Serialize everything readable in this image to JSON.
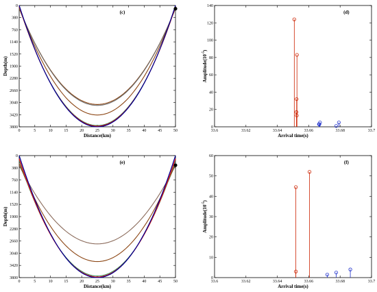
{
  "chart_data": [
    {
      "panel": "c",
      "type": "line",
      "label": "(c)",
      "xlabel": "Distance(km)",
      "ylabel": "Depth(m)",
      "xlim": [
        0,
        50
      ],
      "ylim": [
        0,
        3800
      ],
      "y_inverted": true,
      "x_ticks": [
        "0",
        "5",
        "10",
        "15",
        "20",
        "25",
        "30",
        "35",
        "40",
        "45",
        "50"
      ],
      "y_ticks": [
        "0",
        "380",
        "760",
        "1140",
        "1520",
        "1900",
        "2280",
        "2660",
        "3040",
        "3420",
        "3800"
      ],
      "source": {
        "x": 50,
        "depth": 100
      },
      "rays": [
        {
          "color": "#8b4513",
          "depth": [
            100,
            3100,
            100
          ]
        },
        {
          "color": "#6b6b6b",
          "depth": [
            90,
            3130,
            90
          ]
        },
        {
          "color": "#8b4513",
          "depth": [
            60,
            3430,
            60
          ]
        },
        {
          "color": "#2e8b57",
          "depth": [
            40,
            3760,
            40
          ]
        },
        {
          "color": "#ff0000",
          "depth": [
            30,
            3780,
            30
          ]
        },
        {
          "color": "#0000cd",
          "depth": [
            0,
            3800,
            0
          ]
        },
        {
          "color": "#00008b",
          "depth": [
            0,
            3800,
            0
          ]
        }
      ]
    },
    {
      "panel": "d",
      "type": "stem",
      "label": "(d)",
      "xlabel": "Arrival time(s)",
      "ylabel": "Amplitude(10^-5)",
      "xlim": [
        33.6,
        33.7
      ],
      "ylim": [
        0,
        140
      ],
      "x_ticks": [
        "33.6",
        "33.62",
        "33.64",
        "33.66",
        "33.68",
        "33.7"
      ],
      "y_ticks": [
        "0",
        "20",
        "40",
        "60",
        "80",
        "100",
        "120",
        "140"
      ],
      "series": [
        {
          "color": "#cc2200",
          "points": [
            [
              33.6508,
              124
            ],
            [
              33.6525,
              83
            ],
            [
              33.6523,
              32
            ],
            [
              33.6522,
              17
            ],
            [
              33.6524,
              13
            ]
          ]
        },
        {
          "color": "#2233cc",
          "points": [
            [
              33.6665,
              3
            ],
            [
              33.6672,
              5
            ],
            [
              33.6668,
              3
            ],
            [
              33.6775,
              1
            ],
            [
              33.6792,
              5
            ]
          ]
        }
      ]
    },
    {
      "panel": "e",
      "type": "line",
      "label": "(e)",
      "xlabel": "Distance(km)",
      "ylabel": "Depth(m)",
      "xlim": [
        0,
        50
      ],
      "ylim": [
        0,
        3800
      ],
      "y_inverted": true,
      "x_ticks": [
        "0",
        "5",
        "10",
        "15",
        "20",
        "25",
        "30",
        "35",
        "40",
        "45",
        "50"
      ],
      "y_ticks": [
        "0",
        "380",
        "760",
        "1140",
        "1520",
        "1900",
        "2280",
        "2660",
        "3040",
        "3420",
        "3800"
      ],
      "source": {
        "x": 50,
        "depth": 300
      },
      "rays": [
        {
          "color": "#8b6b5b",
          "depth": [
            300,
            2750,
            300
          ]
        },
        {
          "color": "#8b4513",
          "depth": [
            250,
            3300,
            250
          ]
        },
        {
          "color": "#2e8b57",
          "depth": [
            150,
            3750,
            150
          ]
        },
        {
          "color": "#ff0000",
          "depth": [
            100,
            3780,
            100
          ]
        },
        {
          "color": "#0000cd",
          "depth": [
            0,
            3800,
            0
          ]
        },
        {
          "color": "#00008b",
          "depth": [
            0,
            3800,
            0
          ]
        }
      ]
    },
    {
      "panel": "f",
      "type": "stem",
      "label": "(f)",
      "xlabel": "Arrival time(s)",
      "ylabel": "Amplitude(10^-5)",
      "xlim": [
        33.6,
        33.7
      ],
      "ylim": [
        0,
        60
      ],
      "x_ticks": [
        "33.6",
        "33.62",
        "33.64",
        "33.66",
        "33.68",
        "33.7"
      ],
      "y_ticks": [
        "0",
        "10",
        "20",
        "30",
        "40",
        "50",
        "60"
      ],
      "series": [
        {
          "color": "#cc2200",
          "points": [
            [
              33.6518,
              44.5
            ],
            [
              33.6518,
              3
            ],
            [
              33.6605,
              52
            ]
          ]
        },
        {
          "color": "#2233cc",
          "points": [
            [
              33.6718,
              1.5
            ],
            [
              33.6775,
              2.5
            ],
            [
              33.6865,
              4
            ]
          ]
        }
      ]
    }
  ]
}
